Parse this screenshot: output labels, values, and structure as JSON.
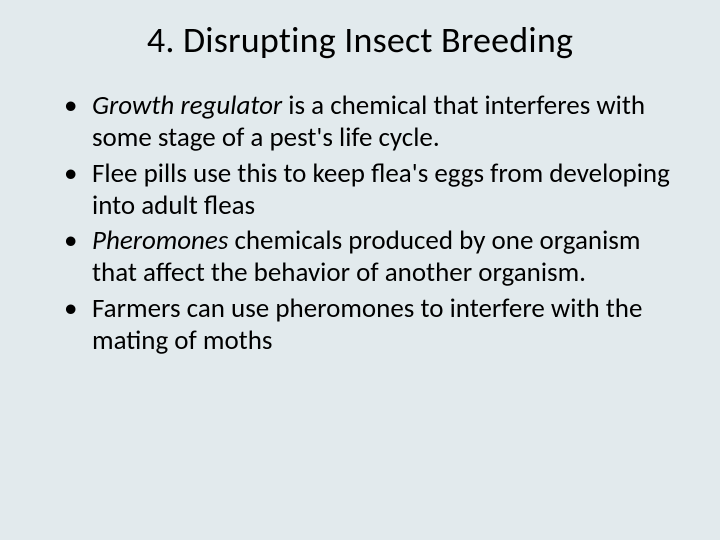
{
  "slide": {
    "title": "4.  Disrupting Insect Breeding",
    "bullets": [
      {
        "italic": "Growth regulator",
        "rest": " is a chemical that interferes with some stage of a pest's life cycle."
      },
      {
        "italic": "",
        "rest": "Flee pills use this to keep flea's eggs from developing into adult fleas"
      },
      {
        "italic": "Pheromones",
        "rest": " chemicals produced by one organism that affect the behavior of another organism."
      },
      {
        "italic": "",
        "rest": "Farmers can use pheromones to interfere with the mating of moths"
      }
    ],
    "styles": {
      "background_color": "#e2eaed",
      "text_color": "#000000",
      "title_fontsize": 36,
      "body_fontsize": 27,
      "font_family": "Calibri"
    }
  }
}
